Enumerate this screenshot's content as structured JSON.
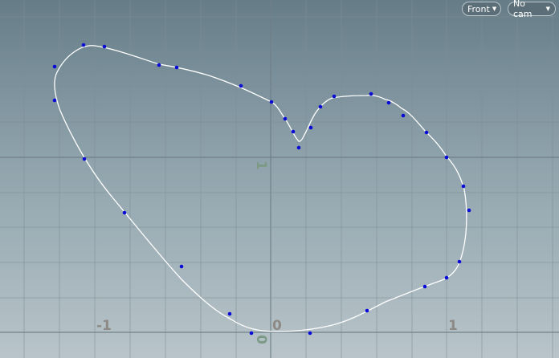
{
  "viewport": {
    "view_menu": {
      "label": "Front",
      "icon": "chevron-down-icon"
    },
    "camera_menu": {
      "label": "No cam",
      "icon": "chevron-down-icon"
    },
    "axis_labels": {
      "x_neg": "-1",
      "x_zero": "0",
      "x_pos": "1",
      "y_one": "1",
      "y_zero": "0"
    },
    "colors": {
      "background_top": "#667d88",
      "background_bottom": "#b8c4c9",
      "grid": "#7e8e96",
      "curve": "#ffffff",
      "control_point": "#0a0ad6",
      "axis_label": "#8d8a86",
      "axis_label_green": "#7c9a86"
    }
  }
}
